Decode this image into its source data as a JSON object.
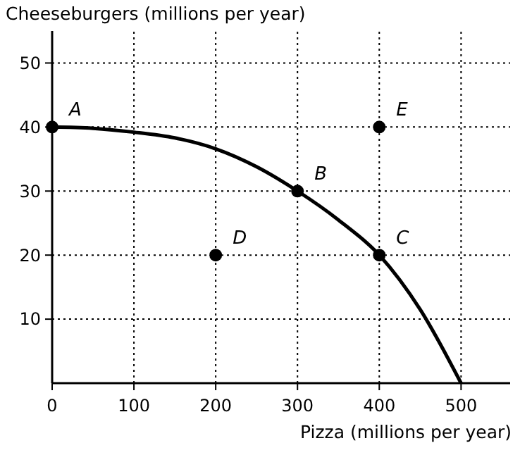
{
  "chart_data": {
    "type": "line",
    "xlabel": "Pizza (millions per year)",
    "ylabel": "Cheeseburgers (millions per year)",
    "xlim": [
      0,
      560
    ],
    "ylim": [
      0,
      55
    ],
    "xticks": [
      0,
      100,
      200,
      300,
      400,
      500
    ],
    "yticks": [
      10,
      20,
      30,
      40,
      50
    ],
    "grid": true,
    "series": [
      {
        "color": "#000000",
        "x": [
          0,
          50,
          100,
          150,
          200,
          250,
          300,
          350,
          400,
          450,
          500
        ],
        "values": [
          40,
          39.8,
          39.2,
          38.3,
          36.6,
          33.8,
          30,
          25.5,
          20,
          11.5,
          0
        ],
        "marker": "none"
      },
      {
        "type": "scatter",
        "color": "#000000",
        "x": [
          0,
          300,
          400,
          200,
          400
        ],
        "values": [
          40,
          30,
          20,
          20,
          40
        ],
        "marker": "circle"
      }
    ],
    "annotations": [
      {
        "text": "A",
        "x": 0,
        "y": 40
      },
      {
        "text": "B",
        "x": 300,
        "y": 30
      },
      {
        "text": "C",
        "x": 400,
        "y": 20
      },
      {
        "text": "D",
        "x": 200,
        "y": 20
      },
      {
        "text": "E",
        "x": 400,
        "y": 40
      }
    ]
  }
}
